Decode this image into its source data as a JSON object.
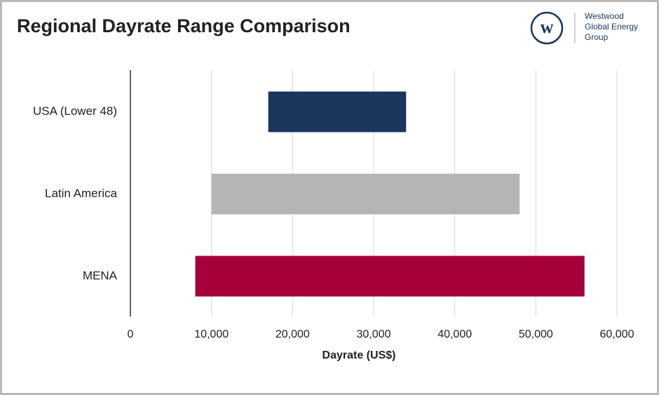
{
  "chart_data": {
    "type": "range_bar",
    "title": "Regional Dayrate Range Comparison",
    "logo": {
      "mark": "w",
      "lines": [
        "Westwood",
        "Global Energy",
        "Group"
      ]
    },
    "x_label": "Dayrate (US$)",
    "categories": [
      "USA (Lower 48)",
      "Latin America",
      "MENA"
    ],
    "low": [
      17000,
      10000,
      8000
    ],
    "high": [
      34000,
      48000,
      56000
    ],
    "colors": [
      "#1b365d",
      "#b5b5b5",
      "#a6003a"
    ],
    "xlim": [
      0,
      60000
    ],
    "xticks": [
      0,
      {
        "value": 10000,
        "label": "10,000"
      },
      {
        "value": 20000,
        "label": "20,000"
      },
      {
        "value": 30000,
        "label": "30,000"
      },
      {
        "value": 40000,
        "label": "40,000"
      },
      {
        "value": 50000,
        "label": "50,000"
      },
      {
        "value": 60000,
        "label": "60,000"
      }
    ],
    "grid": true
  }
}
